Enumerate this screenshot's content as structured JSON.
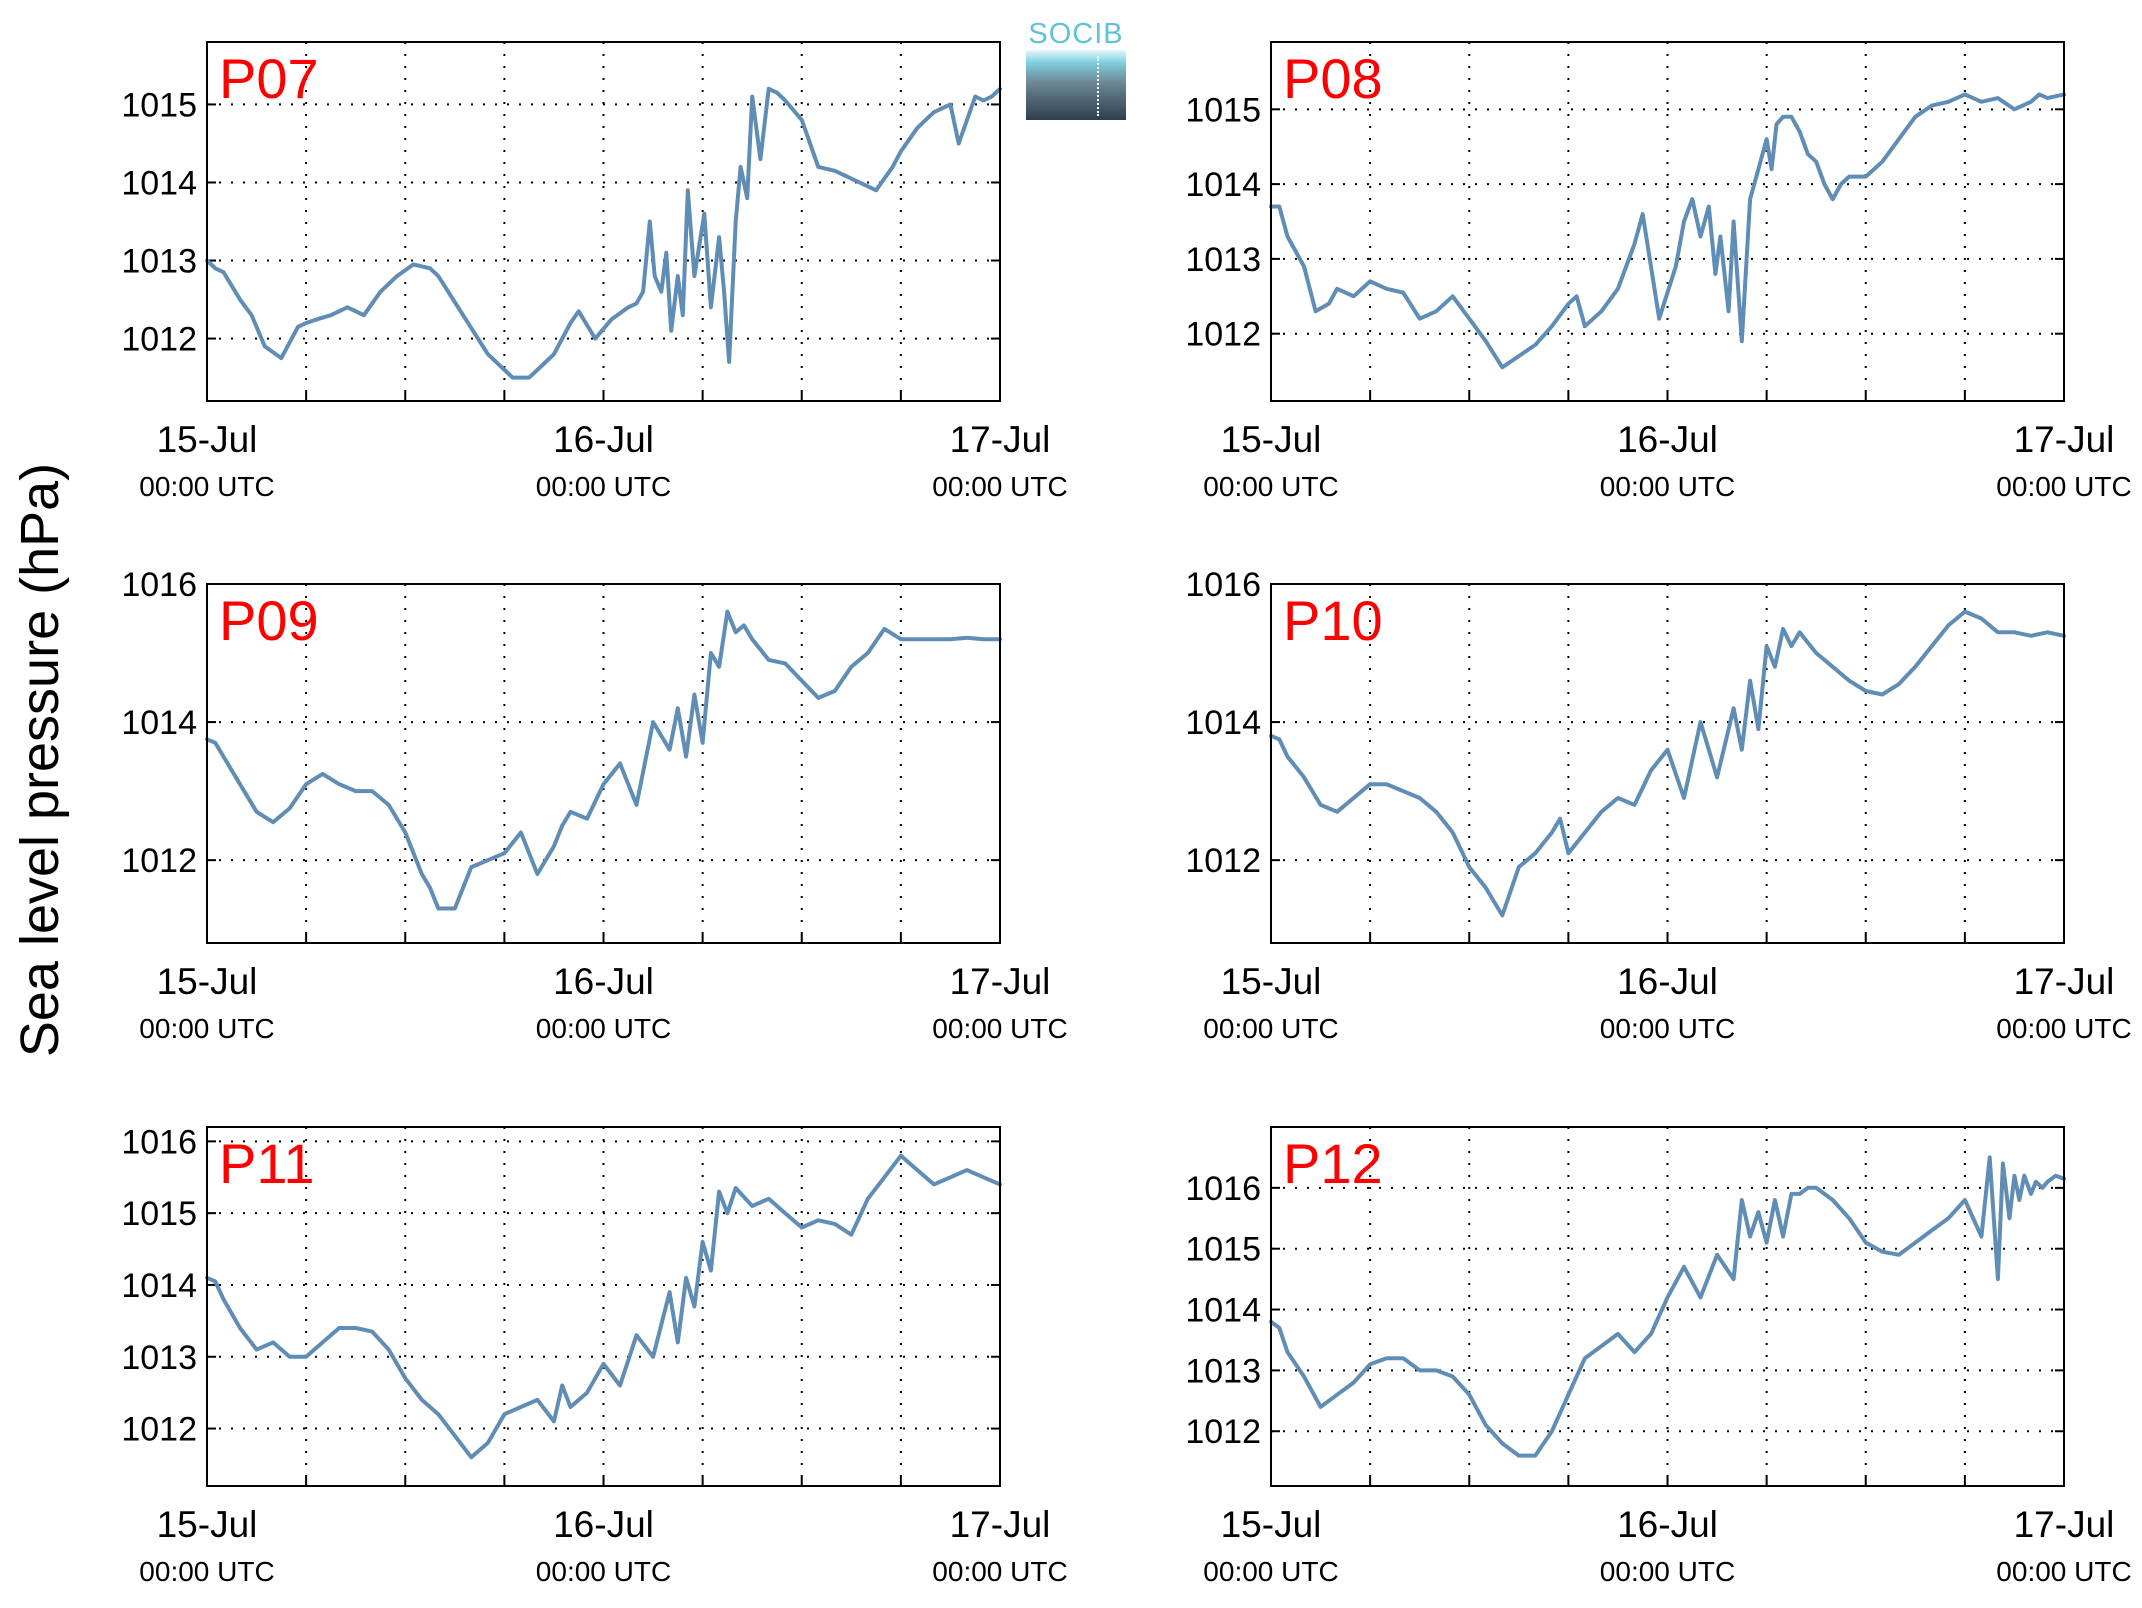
{
  "ylabel": "Sea level pressure (hPa)",
  "logo_text": "SOCIB",
  "colors": {
    "line": "#5f8db5",
    "panel_label": "#ff0000",
    "axis": "#000000",
    "grid": "#000000"
  },
  "chart_data": [
    {
      "type": "line",
      "title": "P07",
      "x_ticks": [
        "15-Jul",
        "16-Jul",
        "17-Jul"
      ],
      "x_tick_sublabels": [
        "00:00 UTC",
        "00:00 UTC",
        "00:00 UTC"
      ],
      "x_range_hours": [
        0,
        48
      ],
      "ylim": [
        1011.2,
        1015.8
      ],
      "yticks": [
        "1012",
        "1013",
        "1014",
        "1015"
      ],
      "grid": true,
      "x_hours": [
        0,
        0.5,
        1,
        2,
        2.7,
        3.5,
        4.5,
        5.5,
        6,
        6.7,
        7.5,
        8.5,
        9.5,
        10.5,
        11.5,
        12.5,
        13.5,
        14,
        15.5,
        17,
        18.5,
        19.5,
        20.5,
        21,
        22,
        22.5,
        23.5,
        24.5,
        25.5,
        26,
        26.4,
        26.8,
        27.1,
        27.5,
        27.8,
        28.1,
        28.5,
        28.8,
        29.1,
        29.5,
        30.1,
        30.5,
        31,
        31.3,
        31.6,
        32,
        32.3,
        32.7,
        33,
        33.5,
        34,
        34.5,
        35,
        36,
        37,
        38,
        38.5,
        39.5,
        40.5,
        41.5,
        42,
        43,
        44,
        45,
        45.5,
        46,
        46.5,
        47,
        47.5,
        48
      ],
      "values": [
        1013,
        1012.9,
        1012.85,
        1012.5,
        1012.3,
        1011.9,
        1011.75,
        1012.15,
        1012.2,
        1012.25,
        1012.3,
        1012.4,
        1012.3,
        1012.6,
        1012.8,
        1012.95,
        1012.9,
        1012.8,
        1012.3,
        1011.8,
        1011.5,
        1011.5,
        1011.7,
        1011.8,
        1012.2,
        1012.35,
        1012,
        1012.25,
        1012.4,
        1012.45,
        1012.6,
        1013.5,
        1012.8,
        1012.6,
        1013.1,
        1012.1,
        1012.8,
        1012.3,
        1013.9,
        1012.8,
        1013.6,
        1012.4,
        1013.3,
        1012.6,
        1011.7,
        1013.5,
        1014.2,
        1013.8,
        1015.1,
        1014.3,
        1015.2,
        1015.15,
        1015.05,
        1014.8,
        1014.2,
        1014.15,
        1014.1,
        1014,
        1013.9,
        1014.2,
        1014.4,
        1014.7,
        1014.9,
        1015,
        1014.5,
        1014.8,
        1015.1,
        1015.05,
        1015.1,
        1015.2
      ]
    },
    {
      "type": "line",
      "title": "P08",
      "x_ticks": [
        "15-Jul",
        "16-Jul",
        "17-Jul"
      ],
      "x_tick_sublabels": [
        "00:00 UTC",
        "00:00 UTC",
        "00:00 UTC"
      ],
      "x_range_hours": [
        0,
        48
      ],
      "ylim": [
        1011.1,
        1015.9
      ],
      "yticks": [
        "1012",
        "1013",
        "1014",
        "1015"
      ],
      "grid": true,
      "x_hours": [
        0,
        0.5,
        1,
        2,
        2.7,
        3.5,
        4,
        5,
        6,
        7,
        8,
        9,
        10,
        11,
        12,
        13,
        14,
        15,
        16,
        17,
        18,
        18.5,
        19,
        20,
        21,
        22,
        22.5,
        23.5,
        24.5,
        25,
        25.5,
        26,
        26.5,
        26.9,
        27.2,
        27.7,
        28,
        28.5,
        29,
        29.5,
        30,
        30.3,
        30.6,
        31,
        31.5,
        32,
        32.5,
        33,
        33.5,
        34,
        34.5,
        35,
        36,
        37,
        38,
        39,
        40,
        41,
        42,
        43,
        44,
        45,
        46,
        46.5,
        47,
        48
      ],
      "values": [
        1013.7,
        1013.7,
        1013.3,
        1012.9,
        1012.3,
        1012.4,
        1012.6,
        1012.5,
        1012.7,
        1012.6,
        1012.55,
        1012.2,
        1012.3,
        1012.5,
        1012.2,
        1011.9,
        1011.55,
        1011.7,
        1011.85,
        1012.1,
        1012.4,
        1012.5,
        1012.1,
        1012.3,
        1012.6,
        1013.2,
        1013.6,
        1012.2,
        1012.9,
        1013.5,
        1013.8,
        1013.3,
        1013.7,
        1012.8,
        1013.3,
        1012.3,
        1013.5,
        1011.9,
        1013.8,
        1014.2,
        1014.6,
        1014.2,
        1014.8,
        1014.9,
        1014.9,
        1014.7,
        1014.4,
        1014.3,
        1014,
        1013.8,
        1014,
        1014.1,
        1014.1,
        1014.3,
        1014.6,
        1014.9,
        1015.05,
        1015.1,
        1015.2,
        1015.1,
        1015.15,
        1015,
        1015.1,
        1015.2,
        1015.15,
        1015.2
      ]
    },
    {
      "type": "line",
      "title": "P09",
      "x_ticks": [
        "15-Jul",
        "16-Jul",
        "17-Jul"
      ],
      "x_tick_sublabels": [
        "00:00 UTC",
        "00:00 UTC",
        "00:00 UTC"
      ],
      "x_range_hours": [
        0,
        48
      ],
      "ylim": [
        1010.8,
        1016.0
      ],
      "yticks": [
        "1012",
        "1014",
        "1016"
      ],
      "grid": true,
      "x_hours": [
        0,
        0.5,
        1,
        2,
        3,
        4,
        5,
        6,
        7,
        8,
        9,
        10,
        11,
        12,
        13,
        13.5,
        14,
        15,
        16,
        17,
        18,
        19,
        20,
        21,
        21.5,
        22,
        23,
        24,
        25,
        26,
        27,
        28,
        28.5,
        29,
        29.5,
        30,
        30.5,
        31,
        31.5,
        32,
        32.5,
        33,
        34,
        35,
        36,
        37,
        38,
        39,
        40,
        41,
        42,
        43,
        44,
        45,
        46,
        47,
        48
      ],
      "values": [
        1013.75,
        1013.7,
        1013.5,
        1013.1,
        1012.7,
        1012.55,
        1012.75,
        1013.1,
        1013.25,
        1013.1,
        1013,
        1013,
        1012.8,
        1012.4,
        1011.8,
        1011.6,
        1011.3,
        1011.3,
        1011.9,
        1012,
        1012.1,
        1012.4,
        1011.8,
        1012.2,
        1012.5,
        1012.7,
        1012.6,
        1013.1,
        1013.4,
        1012.8,
        1014,
        1013.6,
        1014.2,
        1013.5,
        1014.4,
        1013.7,
        1015,
        1014.8,
        1015.6,
        1015.3,
        1015.4,
        1015.2,
        1014.9,
        1014.85,
        1014.6,
        1014.35,
        1014.45,
        1014.8,
        1015,
        1015.35,
        1015.2,
        1015.2,
        1015.2,
        1015.2,
        1015.22,
        1015.2,
        1015.2
      ]
    },
    {
      "type": "line",
      "title": "P10",
      "x_ticks": [
        "15-Jul",
        "16-Jul",
        "17-Jul"
      ],
      "x_tick_sublabels": [
        "00:00 UTC",
        "00:00 UTC",
        "00:00 UTC"
      ],
      "x_range_hours": [
        0,
        48
      ],
      "ylim": [
        1010.8,
        1016.0
      ],
      "yticks": [
        "1012",
        "1014",
        "1016"
      ],
      "grid": true,
      "x_hours": [
        0,
        0.5,
        1,
        2,
        3,
        4,
        5,
        6,
        7,
        8,
        9,
        10,
        11,
        12,
        13,
        13.5,
        14,
        15,
        16,
        17,
        17.5,
        18,
        19,
        20,
        21,
        22,
        23,
        24,
        25,
        26,
        27,
        28,
        28.5,
        29,
        29.5,
        30,
        30.5,
        31,
        31.5,
        32,
        32.5,
        33,
        34,
        35,
        36,
        37,
        38,
        39,
        40,
        41,
        42,
        43,
        44,
        45,
        46,
        47,
        48
      ],
      "values": [
        1013.8,
        1013.75,
        1013.5,
        1013.2,
        1012.8,
        1012.7,
        1012.9,
        1013.1,
        1013.1,
        1013,
        1012.9,
        1012.7,
        1012.4,
        1011.9,
        1011.6,
        1011.4,
        1011.2,
        1011.9,
        1012.1,
        1012.4,
        1012.6,
        1012.1,
        1012.4,
        1012.7,
        1012.9,
        1012.8,
        1013.3,
        1013.6,
        1012.9,
        1014,
        1013.2,
        1014.2,
        1013.6,
        1014.6,
        1013.9,
        1015.1,
        1014.8,
        1015.35,
        1015.1,
        1015.3,
        1015.15,
        1015,
        1014.8,
        1014.6,
        1014.45,
        1014.4,
        1014.55,
        1014.8,
        1015.1,
        1015.4,
        1015.6,
        1015.5,
        1015.3,
        1015.3,
        1015.25,
        1015.3,
        1015.25
      ]
    },
    {
      "type": "line",
      "title": "P11",
      "x_ticks": [
        "15-Jul",
        "16-Jul",
        "17-Jul"
      ],
      "x_tick_sublabels": [
        "00:00 UTC",
        "00:00 UTC",
        "00:00 UTC"
      ],
      "x_range_hours": [
        0,
        48
      ],
      "ylim": [
        1011.2,
        1016.2
      ],
      "yticks": [
        "1012",
        "1013",
        "1014",
        "1015",
        "1016"
      ],
      "grid": true,
      "x_hours": [
        0,
        0.5,
        1,
        2,
        3,
        4,
        5,
        6,
        7,
        8,
        9,
        10,
        11,
        12,
        13,
        14,
        15,
        16,
        17,
        18,
        19,
        20,
        21,
        21.5,
        22,
        23,
        24,
        25,
        26,
        27,
        28,
        28.5,
        29,
        29.5,
        30,
        30.5,
        31,
        31.5,
        32,
        33,
        34,
        35,
        36,
        37,
        38,
        39,
        40,
        41,
        42,
        43,
        44,
        45,
        46,
        47,
        48
      ],
      "values": [
        1014.1,
        1014.05,
        1013.8,
        1013.4,
        1013.1,
        1013.2,
        1013,
        1013,
        1013.2,
        1013.4,
        1013.4,
        1013.35,
        1013.1,
        1012.7,
        1012.4,
        1012.2,
        1011.9,
        1011.6,
        1011.8,
        1012.2,
        1012.3,
        1012.4,
        1012.1,
        1012.6,
        1012.3,
        1012.5,
        1012.9,
        1012.6,
        1013.3,
        1013,
        1013.9,
        1013.2,
        1014.1,
        1013.7,
        1014.6,
        1014.2,
        1015.3,
        1015,
        1015.35,
        1015.1,
        1015.2,
        1015,
        1014.8,
        1014.9,
        1014.85,
        1014.7,
        1015.2,
        1015.5,
        1015.8,
        1015.6,
        1015.4,
        1015.5,
        1015.6,
        1015.5,
        1015.4
      ]
    },
    {
      "type": "line",
      "title": "P12",
      "x_ticks": [
        "15-Jul",
        "16-Jul",
        "17-Jul"
      ],
      "x_tick_sublabels": [
        "00:00 UTC",
        "00:00 UTC",
        "00:00 UTC"
      ],
      "x_range_hours": [
        0,
        48
      ],
      "ylim": [
        1011.1,
        1017.0
      ],
      "yticks": [
        "1012",
        "1013",
        "1014",
        "1015",
        "1016"
      ],
      "grid": true,
      "x_hours": [
        0,
        0.5,
        1,
        2,
        3,
        4,
        5,
        6,
        7,
        8,
        9,
        10,
        11,
        12,
        13,
        14,
        15,
        16,
        17,
        18,
        19,
        20,
        21,
        22,
        23,
        24,
        25,
        26,
        27,
        28,
        28.5,
        29,
        29.5,
        30,
        30.5,
        31,
        31.5,
        32,
        32.5,
        33,
        34,
        35,
        36,
        37,
        38,
        39,
        40,
        41,
        42,
        43,
        43.5,
        44,
        44.3,
        44.7,
        45,
        45.3,
        45.6,
        46,
        46.3,
        46.7,
        47,
        47.5,
        48
      ],
      "values": [
        1013.8,
        1013.7,
        1013.3,
        1012.9,
        1012.4,
        1012.6,
        1012.8,
        1013.1,
        1013.2,
        1013.2,
        1013,
        1013,
        1012.9,
        1012.6,
        1012.1,
        1011.8,
        1011.6,
        1011.6,
        1012,
        1012.6,
        1013.2,
        1013.4,
        1013.6,
        1013.3,
        1013.6,
        1014.2,
        1014.7,
        1014.2,
        1014.9,
        1014.5,
        1015.8,
        1015.2,
        1015.6,
        1015.1,
        1015.8,
        1015.2,
        1015.9,
        1015.9,
        1016,
        1016,
        1015.8,
        1015.5,
        1015.1,
        1014.95,
        1014.9,
        1015.1,
        1015.3,
        1015.5,
        1015.8,
        1015.2,
        1016.5,
        1014.5,
        1016.4,
        1015.5,
        1016.2,
        1015.8,
        1016.2,
        1015.9,
        1016.1,
        1016,
        1016.1,
        1016.2,
        1016.15
      ]
    }
  ]
}
